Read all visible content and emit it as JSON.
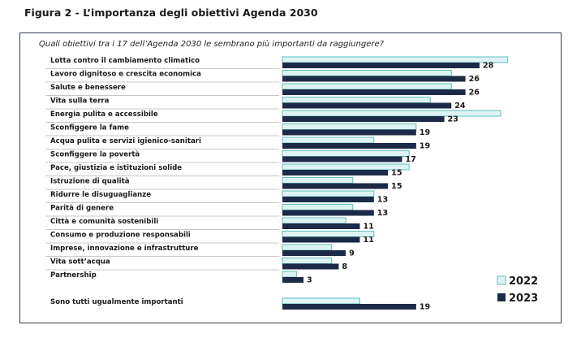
{
  "page": {
    "figure_title": "Figura 2 - L’importanza degli obiettivi Agenda 2030",
    "question": "Quali obiettivi tra i 17 dell’Agenda 2030 le sembrano più importanti da raggiungere?"
  },
  "chart_data": {
    "type": "bar",
    "orientation": "horizontal",
    "categories": [
      "Lotta contro il cambiamento climatico",
      "Lavoro dignitoso e crescita economica",
      "Salute e benessere",
      "Vita sulla terra",
      "Energia pulita e accessibile",
      "Sconfiggere la fame",
      "Acqua pulita e servizi igienico-sanitari",
      "Sconfiggere la povertà",
      "Pace, giustizia e istituzioni solide",
      "Istruzione di qualità",
      "Ridurre le disuguaglianze",
      "Parità di genere",
      "Città e comunità sostenibili",
      "Consumo e produzione responsabili",
      "Imprese, innovazione e infrastrutture",
      "Vita sott’acqua",
      "Partnership",
      "Sono tutti ugualmente importanti"
    ],
    "series": [
      {
        "name": "2022",
        "color": "#dff3f3",
        "border": "#5fbfbf",
        "values": [
          32,
          24,
          24,
          21,
          31,
          19,
          13,
          18,
          18,
          10,
          13,
          10,
          9,
          13,
          7,
          7,
          2,
          11
        ]
      },
      {
        "name": "2023",
        "color": "#1b2a47",
        "values": [
          28,
          26,
          26,
          24,
          23,
          19,
          19,
          17,
          15,
          15,
          13,
          13,
          11,
          11,
          9,
          8,
          3,
          19
        ]
      }
    ],
    "data_labels_series": "2023",
    "xlim": [
      0,
      34
    ],
    "legend_position": "bottom-right",
    "grid": false
  }
}
